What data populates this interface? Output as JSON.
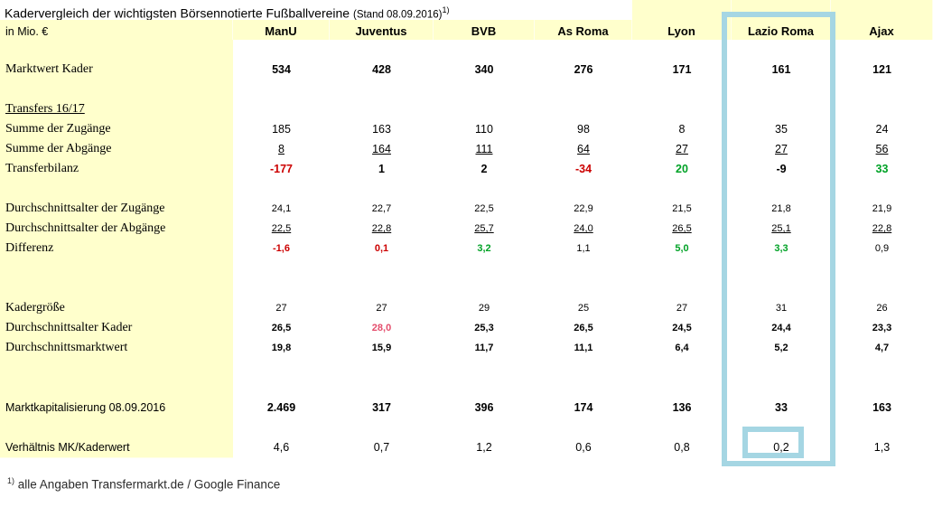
{
  "chart_data": {
    "type": "table",
    "title": "Kadervergleich der wichtigsten Börsennotierte Fußballvereine",
    "stand": "(Stand 08.09.2016)",
    "unit_label": "in Mio. €",
    "columns": [
      "ManU",
      "Juventus",
      "BVB",
      "As Roma",
      "Lyon",
      "Lazio Roma",
      "Ajax"
    ],
    "rows": [
      {
        "spacer": true
      },
      {
        "label": "Marktwert Kader",
        "values": [
          "534",
          "428",
          "340",
          "276",
          "171",
          "161",
          "121"
        ],
        "bold": true
      },
      {
        "spacer": true
      },
      {
        "label": "Transfers 16/17",
        "label_underline": true,
        "values": [
          "",
          "",
          "",
          "",
          "",
          "",
          ""
        ]
      },
      {
        "label": "Summe der Zugänge",
        "values": [
          "185",
          "163",
          "110",
          "98",
          "8",
          "35",
          "24"
        ]
      },
      {
        "label": "Summe der Abgänge",
        "values": [
          "8",
          "164",
          "111",
          "64",
          "27",
          "27",
          "56"
        ],
        "underline_values": true
      },
      {
        "label": "Transferbilanz",
        "values": [
          "-177",
          "1",
          "2",
          "-34",
          "20",
          "-9",
          "33"
        ],
        "bold": true,
        "colors": [
          "red",
          null,
          null,
          "red",
          "green",
          null,
          "green"
        ]
      },
      {
        "spacer": true
      },
      {
        "label": "Durchschnittsalter der Zugänge",
        "values": [
          "24,1",
          "22,7",
          "22,5",
          "22,9",
          "21,5",
          "21,8",
          "21,9"
        ],
        "size": "small"
      },
      {
        "label": "Durchschnittsalter der Abgänge",
        "values": [
          "22,5",
          "22,8",
          "25,7",
          "24,0",
          "26,5",
          "25,1",
          "22,8"
        ],
        "size": "small",
        "underline_values": true
      },
      {
        "label": "Differenz",
        "values": [
          "-1,6",
          "0,1",
          "3,2",
          "1,1",
          "5,0",
          "3,3",
          "0,9"
        ],
        "size": "small",
        "bold_mask": [
          1,
          1,
          1,
          0,
          1,
          1,
          0
        ],
        "colors": [
          "red",
          "red",
          "green",
          null,
          "green",
          "green",
          null
        ]
      },
      {
        "spacer": true
      },
      {
        "spacer": true
      },
      {
        "label": "Kadergröße",
        "values": [
          "27",
          "27",
          "29",
          "25",
          "27",
          "31",
          "26"
        ],
        "size": "small"
      },
      {
        "label": "Durchschnittsalter Kader",
        "values": [
          "26,5",
          "28,0",
          "25,3",
          "26,5",
          "24,5",
          "24,4",
          "23,3"
        ],
        "size": "small",
        "bold": true,
        "colors": [
          null,
          "pink",
          null,
          null,
          null,
          null,
          null
        ]
      },
      {
        "label": "Durchschnittsmarktwert",
        "values": [
          "19,8",
          "15,9",
          "11,7",
          "11,1",
          "6,4",
          "5,2",
          "4,7"
        ],
        "size": "small",
        "bold": true
      },
      {
        "spacer": true
      },
      {
        "spacer": true
      },
      {
        "label": "Marktkapitalisierung 08.09.2016",
        "label_font": "sans",
        "values": [
          "2.469",
          "317",
          "396",
          "174",
          "136",
          "33",
          "163"
        ],
        "bold": true
      },
      {
        "spacer": true
      },
      {
        "label": "Verhältnis MK/Kaderwert",
        "label_font": "sans",
        "values": [
          "4,6",
          "0,7",
          "1,2",
          "0,6",
          "0,8",
          "0,2",
          "1,3"
        ]
      }
    ],
    "highlight": {
      "column": "Lazio Roma",
      "highlighted_cell_value": "0,2",
      "box_color": "#A5D6E3"
    },
    "footnote": {
      "marker": "1)",
      "text": "alle Angaben Transfermarkt.de / Google Finance"
    }
  },
  "colors": {
    "red": "#CC0000",
    "green": "#00A226",
    "pink": "#E44D6C",
    "cell_yellow": "#FFFFCC",
    "highlight_blue": "#A5D6E3"
  }
}
